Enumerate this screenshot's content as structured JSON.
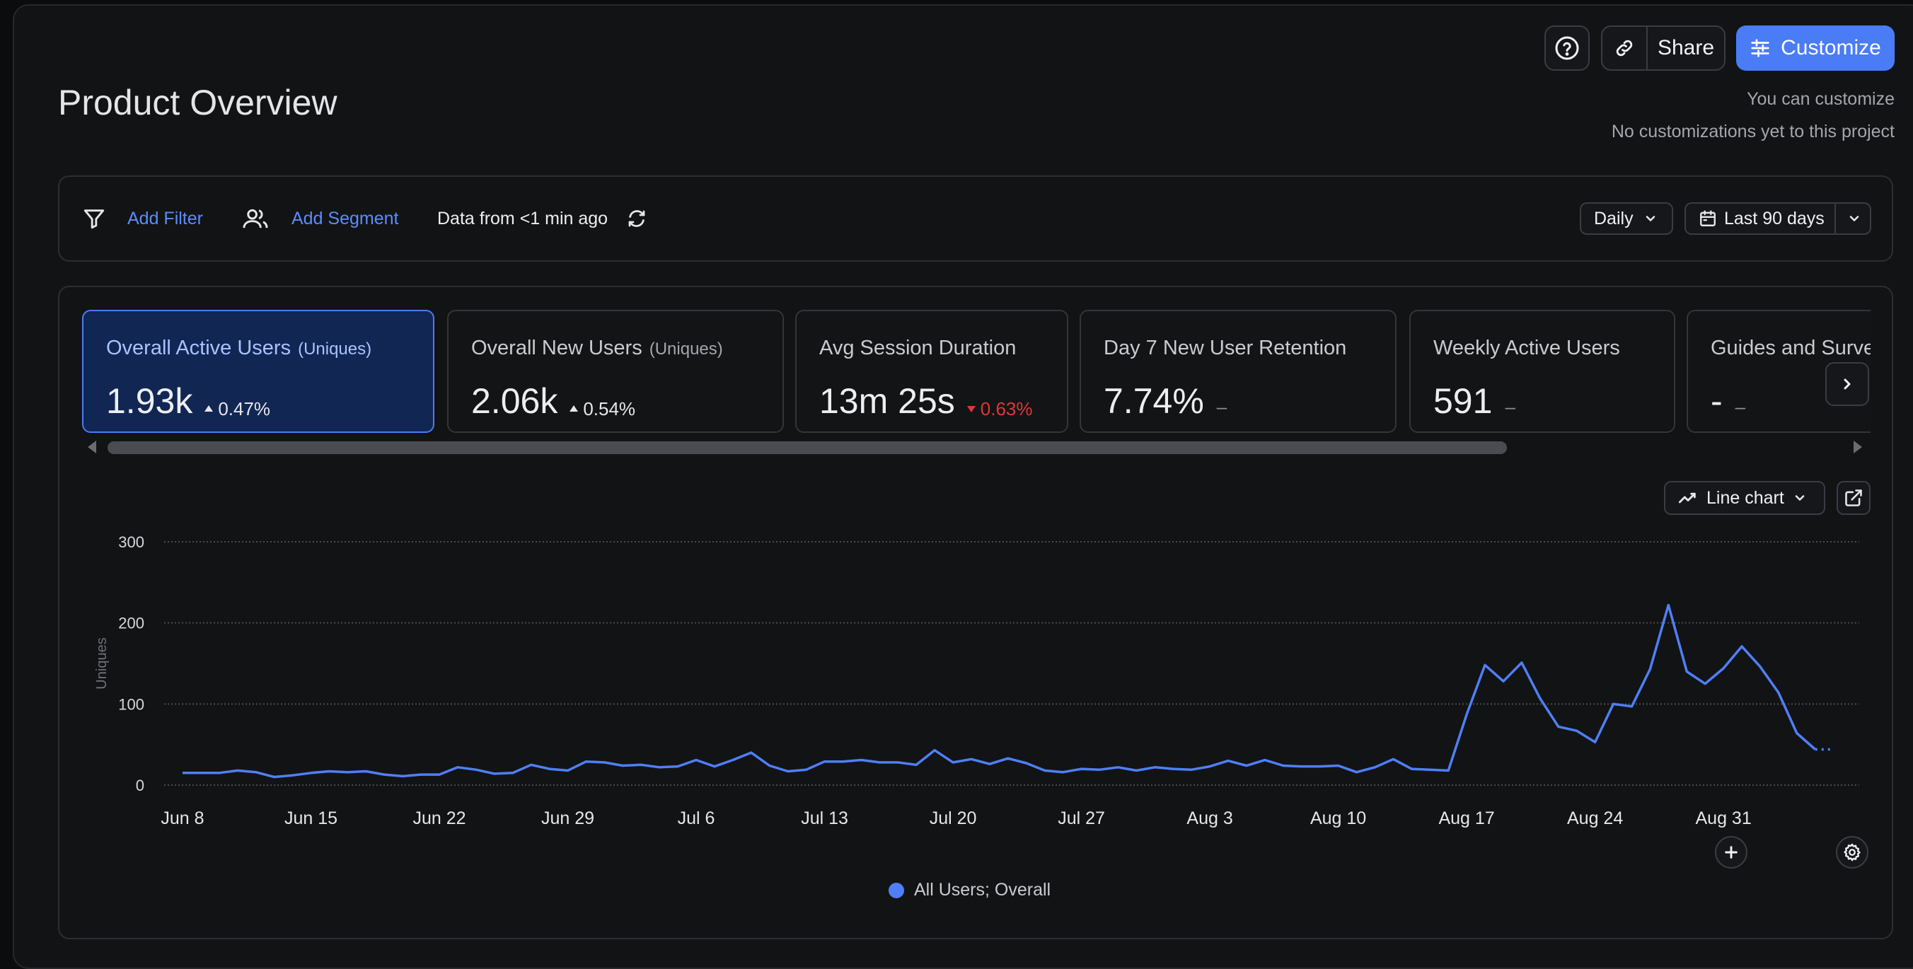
{
  "header": {
    "title": "Product Overview",
    "share_label": "Share",
    "customize_label": "Customize",
    "note_line1": "You can customize",
    "note_line2": "No customizations yet to this project"
  },
  "filters": {
    "add_filter": "Add Filter",
    "add_segment": "Add Segment",
    "data_freshness": "Data from <1 min ago",
    "interval": "Daily",
    "range": "Last 90 days"
  },
  "metrics": [
    {
      "title": "Overall Active Users",
      "sub": "(Uniques)",
      "value": "1.93k",
      "delta": "0.47%",
      "direction": "up",
      "active": true
    },
    {
      "title": "Overall New Users",
      "sub": "(Uniques)",
      "value": "2.06k",
      "delta": "0.54%",
      "direction": "up",
      "active": false
    },
    {
      "title": "Avg Session Duration",
      "sub": "",
      "value": "13m 25s",
      "delta": "0.63%",
      "direction": "down",
      "active": false
    },
    {
      "title": "Day 7 New User Retention",
      "sub": "",
      "value": "7.74%",
      "delta": "–",
      "direction": "none",
      "active": false
    },
    {
      "title": "Weekly Active Users",
      "sub": "",
      "value": "591",
      "delta": "–",
      "direction": "none",
      "active": false
    },
    {
      "title": "Guides and Surveys",
      "sub": "",
      "value": "-",
      "delta": "–",
      "direction": "none",
      "active": false
    }
  ],
  "chart_controls": {
    "chart_type": "Line chart"
  },
  "colors": {
    "accent": "#4a7cf6",
    "series": "#4f7ff7",
    "down": "#e0363a"
  },
  "chart_data": {
    "type": "line",
    "ylabel": "Uniques",
    "ylim": [
      0,
      300
    ],
    "yticks": [
      0,
      100,
      200,
      300
    ],
    "grid": true,
    "legend_position": "bottom",
    "x_start": "Jun 8",
    "xtick_labels": [
      "Jun 8",
      "Jun 15",
      "Jun 22",
      "Jun 29",
      "Jul 6",
      "Jul 13",
      "Jul 20",
      "Jul 27",
      "Aug 3",
      "Aug 10",
      "Aug 17",
      "Aug 24",
      "Aug 31"
    ],
    "series": [
      {
        "name": "All Users; Overall",
        "values": [
          15,
          15,
          15,
          18,
          16,
          10,
          12,
          15,
          17,
          16,
          17,
          13,
          11,
          13,
          13,
          22,
          19,
          14,
          15,
          25,
          20,
          18,
          29,
          28,
          24,
          25,
          22,
          23,
          31,
          23,
          31,
          40,
          24,
          17,
          19,
          29,
          29,
          31,
          28,
          28,
          25,
          43,
          28,
          32,
          26,
          33,
          27,
          18,
          16,
          20,
          19,
          22,
          18,
          22,
          20,
          19,
          23,
          30,
          24,
          31,
          24,
          23,
          23,
          24,
          16,
          22,
          32,
          20,
          19,
          18,
          87,
          148,
          128,
          151,
          107,
          72,
          67,
          53,
          100,
          97,
          143,
          222,
          140,
          125,
          144,
          171,
          146,
          114,
          64,
          44,
          44
        ]
      }
    ]
  }
}
